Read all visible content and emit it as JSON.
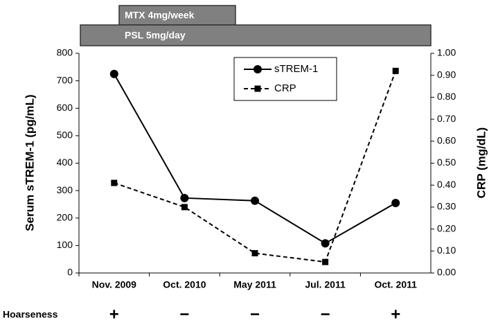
{
  "chart_data": {
    "type": "line",
    "categories": [
      "Nov. 2009",
      "Oct. 2010",
      "May 2011",
      "Jul. 2011",
      "Oct. 2011"
    ],
    "series": [
      {
        "name": "sTREM-1",
        "color": "#000000",
        "line_style": "solid",
        "marker": "circle",
        "values": [
          725,
          273,
          263,
          108,
          255
        ]
      },
      {
        "name": "CRP",
        "color": "#000000",
        "line_style": "dashed",
        "marker": "square",
        "axis": "y2",
        "values": [
          0.41,
          0.3,
          0.09,
          0.05,
          0.92
        ]
      }
    ],
    "ylabel": "Serum sTREM-1 (pg/mL)",
    "y2label": "CRP (mg/dL)",
    "ylim": [
      0,
      800
    ],
    "yticks": [
      0,
      100,
      200,
      300,
      400,
      500,
      600,
      700,
      800
    ],
    "y2lim": [
      0,
      1
    ],
    "y2ticks": [
      {
        "value": 0,
        "label": "0.00"
      },
      {
        "value": 0.1,
        "label": "0.10"
      },
      {
        "value": 0.2,
        "label": "0.20"
      },
      {
        "value": 0.3,
        "label": "0.30"
      },
      {
        "value": 0.4,
        "label": "0.40"
      },
      {
        "value": 0.5,
        "label": "0.50"
      },
      {
        "value": 0.6,
        "label": "0.60"
      },
      {
        "value": 0.7,
        "label": "0.70"
      },
      {
        "value": 0.8,
        "label": "0.80"
      },
      {
        "value": 0.9,
        "label": "0.90"
      },
      {
        "value": 1,
        "label": "1.00"
      }
    ],
    "grid": false,
    "treatments": [
      "MTX 4mg/week",
      "PSL 5mg/day"
    ],
    "hoarseness": {
      "label": "Hoarseness",
      "values": [
        "+",
        "−",
        "−",
        "−",
        "+"
      ]
    }
  }
}
